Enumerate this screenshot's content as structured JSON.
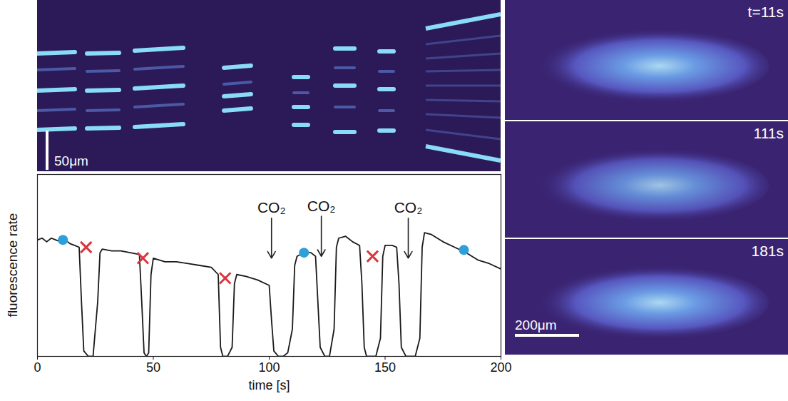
{
  "chart_data": {
    "type": "line",
    "xlabel": "time [s]",
    "ylabel": "fluorescence rate",
    "xlim": [
      0,
      200
    ],
    "xticks": [
      0,
      50,
      100,
      150,
      200
    ],
    "ylim": [
      0,
      1
    ],
    "tick_labels": "x",
    "grid": false,
    "series": [
      {
        "type": "line",
        "color": "#1a1a1a",
        "x": [
          0,
          2,
          4,
          6,
          8,
          10,
          12,
          14,
          16,
          18,
          19,
          20,
          22,
          24,
          26,
          27,
          28,
          32,
          36,
          40,
          44,
          45,
          46,
          47,
          48,
          49,
          50,
          55,
          60,
          65,
          70,
          75,
          78,
          79,
          80,
          82,
          84,
          85,
          86,
          90,
          95,
          100,
          101,
          102,
          104,
          106,
          108,
          110,
          111,
          112,
          115,
          118,
          120,
          121,
          122,
          124,
          126,
          128,
          129,
          130,
          133,
          136,
          139,
          140,
          141,
          142,
          144,
          146,
          148,
          149,
          150,
          153,
          155,
          156,
          157,
          159,
          161,
          163,
          165,
          166,
          167,
          170,
          175,
          180,
          185,
          190,
          195,
          200
        ],
        "values": [
          0.64,
          0.65,
          0.63,
          0.65,
          0.64,
          0.63,
          0.64,
          0.62,
          0.61,
          0.6,
          0.3,
          0.03,
          0.0,
          0.0,
          0.3,
          0.57,
          0.59,
          0.58,
          0.58,
          0.57,
          0.56,
          0.3,
          0.02,
          0.0,
          0.02,
          0.45,
          0.54,
          0.52,
          0.52,
          0.51,
          0.5,
          0.49,
          0.45,
          0.05,
          0.0,
          0.0,
          0.05,
          0.4,
          0.45,
          0.44,
          0.42,
          0.39,
          0.2,
          0.03,
          0.0,
          0.0,
          0.02,
          0.15,
          0.5,
          0.55,
          0.57,
          0.57,
          0.55,
          0.3,
          0.05,
          0.0,
          0.0,
          0.15,
          0.6,
          0.65,
          0.66,
          0.63,
          0.61,
          0.4,
          0.05,
          0.0,
          0.0,
          0.0,
          0.1,
          0.55,
          0.61,
          0.61,
          0.6,
          0.4,
          0.05,
          0.0,
          0.0,
          0.0,
          0.1,
          0.6,
          0.68,
          0.67,
          0.63,
          0.6,
          0.57,
          0.53,
          0.51,
          0.48
        ]
      },
      {
        "type": "scatter",
        "marker": "circle",
        "color": "#2e9fd8",
        "x": [
          11,
          115,
          184
        ],
        "values": [
          0.64,
          0.57,
          0.585
        ]
      },
      {
        "type": "scatter",
        "marker": "x",
        "color": "#d9363e",
        "x": [
          21,
          45.5,
          81,
          144.6
        ],
        "values": [
          0.6,
          0.54,
          0.43,
          0.55
        ]
      }
    ],
    "annotations": [
      {
        "x": 101,
        "y": 0.54,
        "text": "CO₂"
      },
      {
        "x": 122.5,
        "y": 0.55,
        "text": "CO₂"
      },
      {
        "x": 160,
        "y": 0.54,
        "text": "CO₂"
      }
    ]
  },
  "kymograph": {
    "scale_bar": "50μm"
  },
  "snapshots": {
    "labels": [
      "t=11s",
      "111s",
      "181s"
    ],
    "scale_bar": "200μm"
  }
}
